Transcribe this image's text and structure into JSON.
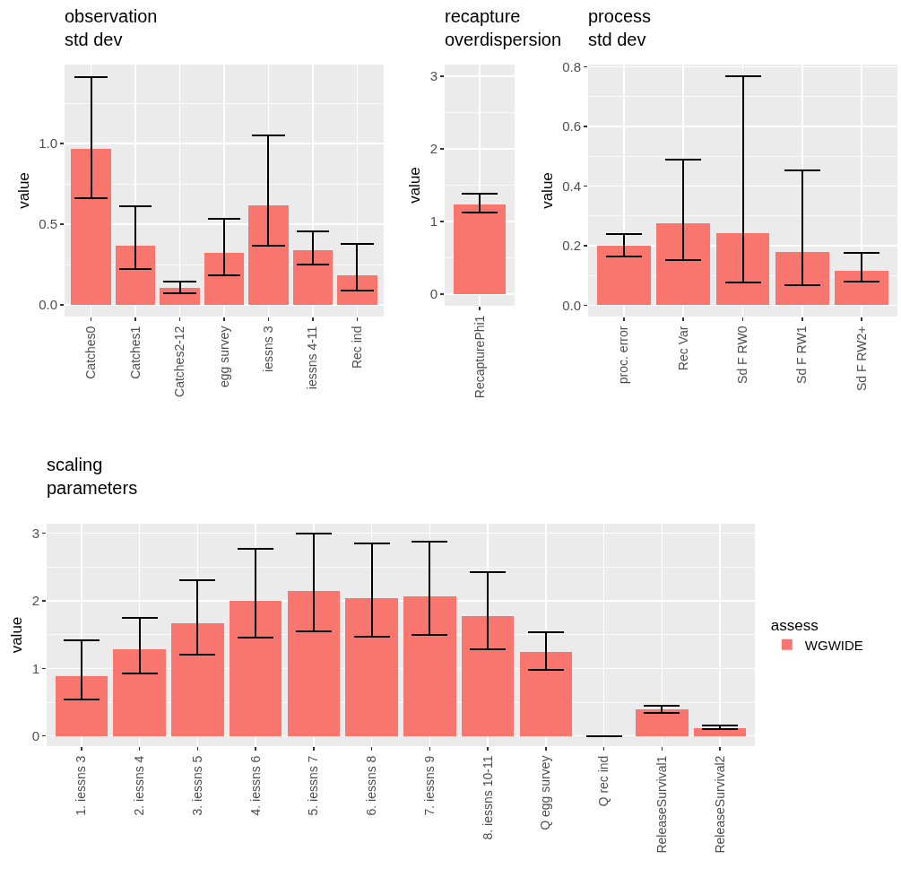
{
  "chart_data": [
    {
      "type": "bar",
      "title": "observation\nstd dev",
      "ylabel": "value",
      "categories": [
        "Catches0",
        "Catches1",
        "Catches2-12",
        "egg survey",
        "iessns 3",
        "iessns 4-11",
        "Rec ind"
      ],
      "series": [
        {
          "color": "#f8766d",
          "values": [
            0.97,
            0.367,
            0.107,
            0.322,
            0.619,
            0.341,
            0.185
          ],
          "errors": [
            [
              0.66,
              1.415
            ],
            [
              0.226,
              0.61
            ],
            [
              0.076,
              0.148
            ],
            [
              0.185,
              0.537
            ],
            [
              0.37,
              1.05
            ],
            [
              0.25,
              0.459
            ],
            [
              0.089,
              0.381
            ]
          ]
        }
      ],
      "ylim": [
        -0.071,
        1.49
      ],
      "yticks": [
        {
          "value": 0,
          "label": "0.0"
        },
        {
          "value": 0.5,
          "label": "0.5"
        },
        {
          "value": 1,
          "label": "1.0"
        }
      ],
      "grid": true,
      "legend": false
    },
    {
      "type": "bar",
      "title": "recapture\noverdispersion",
      "ylabel": "value",
      "categories": [
        "RecapturePhi1"
      ],
      "series": [
        {
          "color": "#f8766d",
          "values": [
            1.23
          ],
          "errors": [
            [
              1.13,
              1.38
            ]
          ]
        }
      ],
      "ylim": [
        -0.158,
        3.16
      ],
      "yticks": [
        0,
        1,
        2,
        3
      ],
      "grid": true,
      "legend": false
    },
    {
      "type": "bar",
      "title": "process\nstd dev",
      "ylabel": "value",
      "categories": [
        "proc. error",
        "Rec Var",
        "Sd F RW0",
        "Sd F RW1",
        "Sd F RW2+"
      ],
      "series": [
        {
          "color": "#f8766d",
          "values": [
            0.2,
            0.274,
            0.241,
            0.178,
            0.116
          ],
          "errors": [
            [
              0.164,
              0.238
            ],
            [
              0.152,
              0.488
            ],
            [
              0.075,
              0.768
            ],
            [
              0.068,
              0.452
            ],
            [
              0.078,
              0.175
            ]
          ]
        }
      ],
      "ylim": [
        -0.038,
        0.807
      ],
      "yticks": [
        {
          "value": 0,
          "label": "0.0"
        },
        {
          "value": 0.2,
          "label": "0.2"
        },
        {
          "value": 0.4,
          "label": "0.4"
        },
        {
          "value": 0.6,
          "label": "0.6"
        },
        {
          "value": 0.8,
          "label": "0.8"
        }
      ],
      "grid": true,
      "legend": false
    },
    {
      "type": "bar",
      "title": "scaling\nparameters",
      "ylabel": "value",
      "legend_title": "assess",
      "categories": [
        "1. iessns 3",
        "2. iessns 4",
        "3. iessns 5",
        "4. iessns 6",
        "5. iessns 7",
        "6. iessns 8",
        "7. iessns 9",
        "8. iessns 10-11",
        "Q egg survey",
        "Q rec ind",
        "ReleaseSurvival1",
        "ReleaseSurvival2"
      ],
      "series": [
        {
          "name": "WGWIDE",
          "color": "#f8766d",
          "values": [
            0.88,
            1.28,
            1.67,
            2.0,
            2.15,
            2.04,
            2.07,
            1.78,
            1.24,
            0,
            0.4,
            0.11
          ],
          "errors": [
            [
              0.54,
              1.41
            ],
            [
              0.92,
              1.75
            ],
            [
              1.2,
              2.31
            ],
            [
              1.45,
              2.77
            ],
            [
              1.55,
              2.99
            ],
            [
              1.47,
              2.85
            ],
            [
              1.49,
              2.88
            ],
            [
              1.28,
              2.43
            ],
            [
              0.98,
              1.54
            ],
            [
              0,
              0
            ],
            [
              0.34,
              0.45
            ],
            [
              0.1,
              0.15
            ]
          ]
        }
      ],
      "ylim": [
        -0.15,
        3.14
      ],
      "yticks": [
        0,
        1,
        2,
        3
      ],
      "grid": true,
      "legend": "right"
    }
  ]
}
